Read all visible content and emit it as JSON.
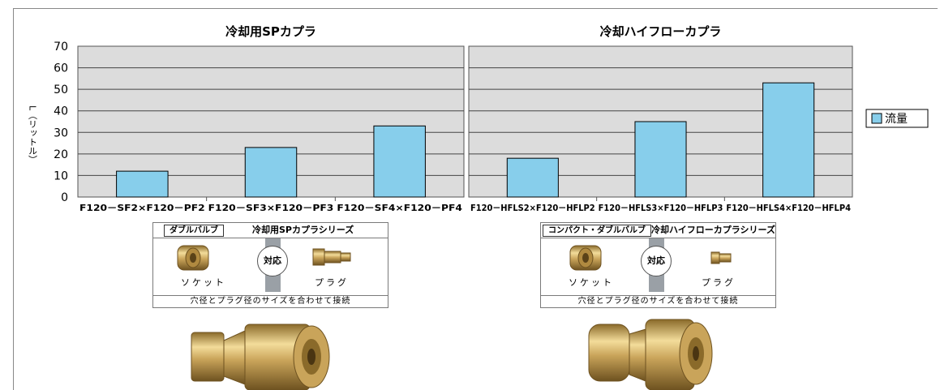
{
  "y_axis_label": "L（リットル）",
  "legend": {
    "label": "流量",
    "color": "#87ceeb"
  },
  "chart_data": [
    {
      "type": "bar",
      "title": "冷却用SPカプラ",
      "categories": [
        "F120－SF2×F120－PF2",
        "F120－SF3×F120－PF3",
        "F120－SF4×F120－PF4"
      ],
      "series": [
        {
          "name": "流量",
          "values": [
            12,
            23,
            33
          ]
        }
      ],
      "ylim": [
        0,
        70
      ],
      "yticks": [
        0,
        10,
        20,
        30,
        40,
        50,
        60,
        70
      ],
      "grid": true,
      "bar_color": "#87ceeb"
    },
    {
      "type": "bar",
      "title": "冷却ハイフローカプラ",
      "categories": [
        "F120－HFLS2×F120－HFLP2",
        "F120－HFLS3×F120－HFLP3",
        "F120－HFLS4×F120－HFLP4"
      ],
      "series": [
        {
          "name": "流量",
          "values": [
            18,
            35,
            53
          ]
        }
      ],
      "ylim": [
        0,
        70
      ],
      "yticks": [
        0,
        10,
        20,
        30,
        40,
        50,
        60,
        70
      ],
      "grid": true,
      "bar_color": "#87ceeb"
    }
  ],
  "panels": [
    {
      "tag": "ダブルバルブ",
      "series_name": "冷却用SPカプラシリーズ",
      "badge": "対応",
      "socket_label": "ソケット",
      "plug_label": "プラグ",
      "footer": "穴径とプラグ径のサイズを合わせて接続"
    },
    {
      "tag": "コンパクト・ダブルバルブ",
      "series_name": "冷却ハイフローカプラシリーズ",
      "badge": "対応",
      "socket_label": "ソケット",
      "plug_label": "プラグ",
      "footer": "穴径とプラグ径のサイズを合わせて接続"
    }
  ]
}
